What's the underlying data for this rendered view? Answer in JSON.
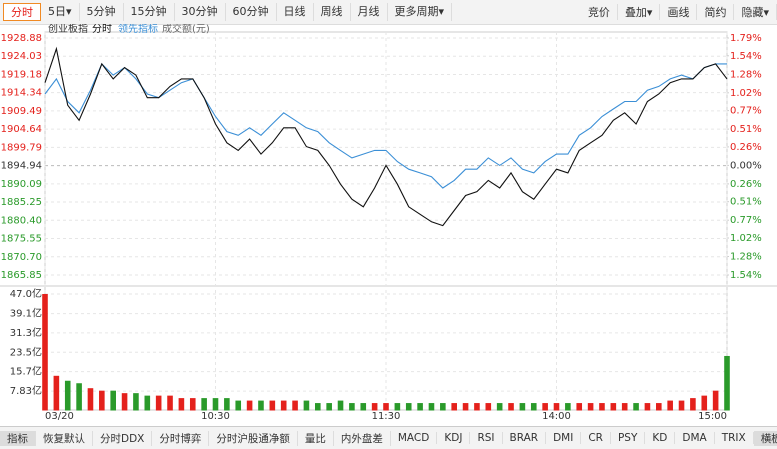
{
  "toolbar": {
    "left": [
      "分时",
      "5日▾",
      "5分钟",
      "15分钟",
      "30分钟",
      "60分钟",
      "日线",
      "周线",
      "月线",
      "更多周期▾"
    ],
    "right": [
      "竞价",
      "叠加▾",
      "画线",
      "简约",
      "隐藏▾"
    ]
  },
  "tabs": [
    "指标",
    "恢复默认",
    "分时DDX",
    "分时博弈",
    "分时沪股通净额",
    "量比",
    "内外盘差",
    "MACD",
    "KDJ",
    "RSI",
    "BRAR",
    "DMI",
    "CR",
    "PSY",
    "KD",
    "DMA",
    "TRIX",
    "横板"
  ],
  "chart_data": [
    {
      "type": "line",
      "title": "创业板指",
      "x": [
        0,
        4,
        8,
        12,
        16,
        20,
        24,
        28,
        32,
        36,
        40,
        44,
        48,
        52,
        56,
        60,
        64,
        68,
        72,
        76,
        80,
        84,
        88,
        92,
        96,
        100,
        104,
        108,
        112,
        116,
        120,
        124,
        128,
        132,
        136,
        140,
        144,
        148,
        152,
        156,
        160,
        164,
        168,
        172,
        176,
        180,
        184,
        188,
        192,
        196,
        200,
        204,
        208,
        212,
        216,
        220,
        224,
        228,
        232,
        236,
        240
      ],
      "xlim": [
        0,
        240
      ],
      "xticks": [
        {
          "value": 0,
          "label": "03/20"
        },
        {
          "value": 60,
          "label": "10:30"
        },
        {
          "value": 120,
          "label": "11:30"
        },
        {
          "value": 180,
          "label": "14:00"
        },
        {
          "value": 240,
          "label": "15:00"
        }
      ],
      "ylim": [
        1865.85,
        1928.88
      ],
      "yticks": [
        1928.88,
        1924.03,
        1919.18,
        1914.34,
        1909.49,
        1904.64,
        1899.79,
        1894.94,
        1890.09,
        1885.25,
        {
          "value": 1880.4,
          "label": "1880.40"
        },
        1875.55,
        {
          "value": 1870.7,
          "label": "1870.70"
        },
        1865.85
      ],
      "y2lim": [
        -1.54,
        1.79
      ],
      "y2ticks": [
        {
          "value": 1.79,
          "label": "1.79%"
        },
        {
          "value": 1.54,
          "label": "1.54%"
        },
        {
          "value": 1.28,
          "label": "1.28%"
        },
        {
          "value": 1.02,
          "label": "1.02%"
        },
        {
          "value": 0.77,
          "label": "0.77%"
        },
        {
          "value": 0.51,
          "label": "0.51%"
        },
        {
          "value": 0.26,
          "label": "0.26%"
        },
        {
          "value": 0,
          "label": "0.00%"
        },
        {
          "value": -0.26,
          "label": "0.26%"
        },
        {
          "value": -0.51,
          "label": "0.51%"
        },
        {
          "value": -0.77,
          "label": "0.77%"
        },
        {
          "value": -1.02,
          "label": "1.02%"
        },
        {
          "value": -1.28,
          "label": "1.28%"
        },
        {
          "value": -1.54,
          "label": "1.54%"
        }
      ],
      "up_color": "#e4211c",
      "down_color": "#2a9a2a",
      "flat_color": "#333333",
      "grid": true,
      "series": [
        {
          "name": "分时",
          "color": "#111111",
          "values": [
            1917,
            1926,
            1911,
            1907,
            1914,
            1922,
            1918,
            1921,
            1919,
            1913,
            1913,
            1916,
            1918,
            1918,
            1913,
            1906,
            1901,
            1899,
            1902,
            1898,
            1901,
            1905,
            1905,
            1900,
            1899,
            1895,
            1890,
            1886,
            1884,
            1889,
            1895,
            1890,
            1884,
            1882,
            1880,
            1879,
            1883,
            1887,
            1888,
            1891,
            1889,
            1893,
            1888,
            1886,
            1890,
            1894,
            1893,
            1899,
            1901,
            1903,
            1907,
            1909,
            1906,
            1912,
            1914,
            1917,
            1918,
            1918,
            1921,
            1922,
            1918
          ]
        },
        {
          "name": "领先指标",
          "color": "#3b8fd6",
          "values": [
            1914,
            1918,
            1912,
            1909,
            1915,
            1922,
            1919,
            1921,
            1918,
            1914,
            1913,
            1915,
            1917,
            1918,
            1913,
            1908,
            1904,
            1903,
            1905,
            1903,
            1906,
            1909,
            1907,
            1905,
            1904,
            1901,
            1899,
            1897,
            1898,
            1899,
            1899,
            1896,
            1894,
            1893,
            1892,
            1889,
            1891,
            1894,
            1894,
            1897,
            1895,
            1897,
            1894,
            1893,
            1896,
            1898,
            1898,
            1903,
            1905,
            1908,
            1910,
            1912,
            1912,
            1915,
            1916,
            1918,
            1919,
            1918,
            1921,
            1922,
            1922
          ]
        }
      ]
    },
    {
      "type": "bar",
      "title": "成交额(元)",
      "ylim": [
        0,
        47.0
      ],
      "yticks": [
        {
          "value": 47.0,
          "label": "47.0亿"
        },
        {
          "value": 39.1,
          "label": "39.1亿"
        },
        {
          "value": 31.3,
          "label": "31.3亿"
        },
        {
          "value": 23.5,
          "label": "23.5亿"
        },
        {
          "value": 15.7,
          "label": "15.7亿"
        },
        {
          "value": 7.83,
          "label": "7.83亿"
        }
      ],
      "values": [
        47,
        14,
        12,
        11,
        9,
        8,
        8,
        7,
        7,
        6,
        6,
        6,
        5,
        5,
        5,
        5,
        5,
        4,
        4,
        4,
        4,
        4,
        4,
        4,
        3,
        3,
        4,
        3,
        3,
        3,
        3,
        3,
        3,
        3,
        3,
        3,
        3,
        3,
        3,
        3,
        3,
        3,
        3,
        3,
        3,
        3,
        3,
        3,
        3,
        3,
        3,
        3,
        3,
        3,
        3,
        4,
        4,
        5,
        6,
        8,
        22
      ]
    }
  ]
}
